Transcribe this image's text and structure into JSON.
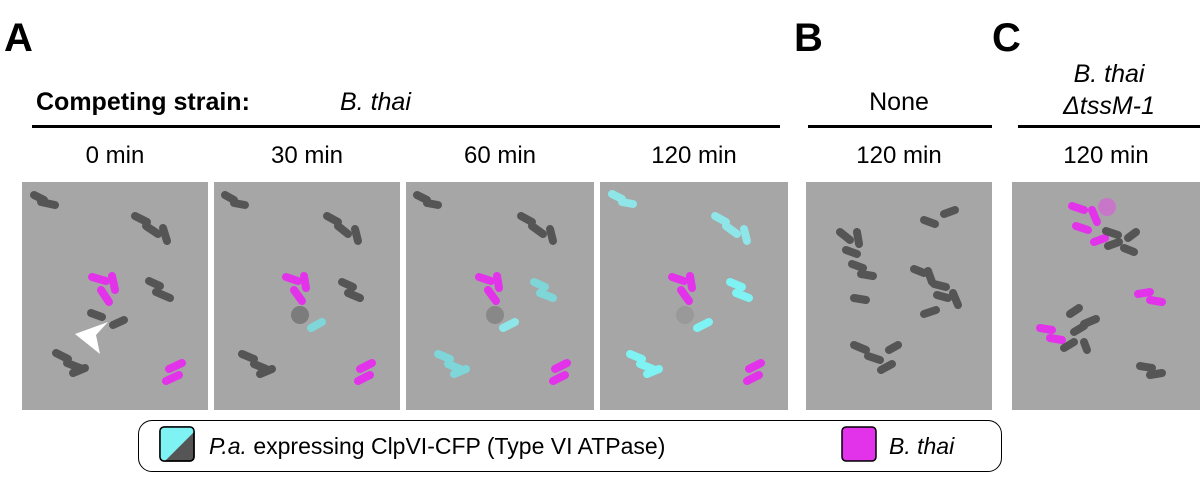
{
  "panels": [
    {
      "letter": "A"
    },
    {
      "letter": "B"
    },
    {
      "letter": "C"
    }
  ],
  "header": {
    "competing_label": "Competing strain:",
    "strain_a": "B. thai",
    "strain_b": "None",
    "strain_c_line1": "B. thai",
    "strain_c_line2": "ΔtssM-1"
  },
  "time_labels": [
    "0 min",
    "30 min",
    "60 min",
    "120 min",
    "120 min",
    "120 min"
  ],
  "legend": {
    "pa_italic": "P.a.",
    "pa_rest": " expressing ClpVI-CFP (Type VI ATPase)",
    "bthai": "B. thai"
  },
  "colors": {
    "background_frame": "#a6a6a6",
    "pa_dark": "#555555",
    "pa_cyan": "#7ff2f4",
    "bthai_magenta": "#e233ea",
    "lysed": "#7c7c7c"
  },
  "icons": {
    "arrowhead": "arrowhead-icon"
  }
}
